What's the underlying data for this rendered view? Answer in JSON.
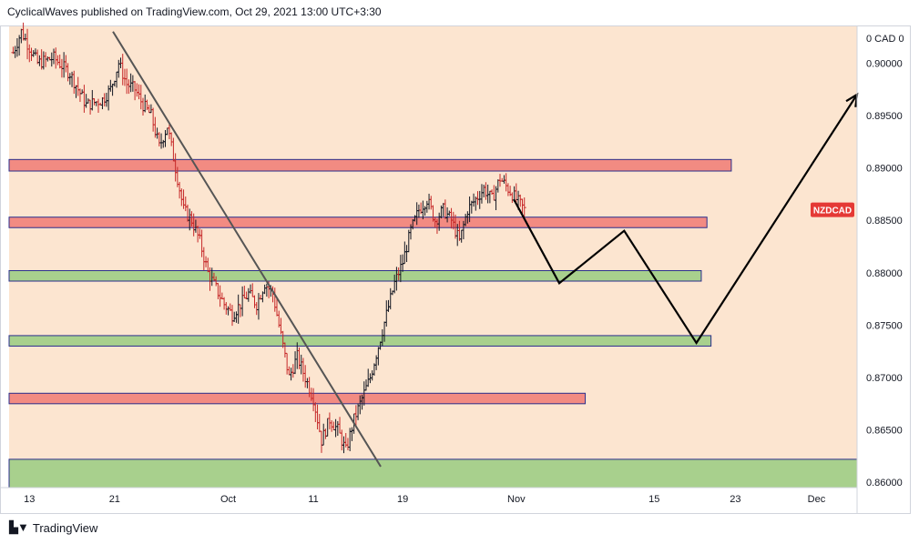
{
  "header": {
    "publish_line": "CyclicalWaves published on TradingView.com, Oct 29, 2021 13:00 UTC+3:30"
  },
  "footer": {
    "logo_icon": "tradingview-logo-icon",
    "brand": "TradingView"
  },
  "colors": {
    "plot_bg": "#fce5d0",
    "bull": "#131722",
    "bear": "#c62828",
    "resistance_zone": "#f28b82",
    "support_zone": "#a8d08d",
    "zone_border": "#2a2e8c",
    "symbol_badge": "#e53935"
  },
  "chart_data": {
    "type": "ohlc",
    "symbol": "NZDCAD",
    "y_axis_currency_label": "0 CAD 0",
    "ylim": [
      0.8595,
      0.9035
    ],
    "xlim": [
      -0.5,
      104
    ],
    "x_tick_labels": [
      {
        "label": "13",
        "x": 2
      },
      {
        "label": "21",
        "x": 12.5
      },
      {
        "label": "Oct",
        "x": 26.5
      },
      {
        "label": "11",
        "x": 37
      },
      {
        "label": "19",
        "x": 48
      },
      {
        "label": "Nov",
        "x": 62
      },
      {
        "label": "15",
        "x": 79
      },
      {
        "label": "23",
        "x": 89
      },
      {
        "label": "Dec",
        "x": 99
      }
    ],
    "y_ticks": [
      0.9,
      0.895,
      0.89,
      0.885,
      0.88,
      0.875,
      0.87,
      0.865,
      0.86
    ],
    "y_tick_labels": [
      "0.90000",
      "0.89500",
      "0.89000",
      "0.88500",
      "0.88000",
      "0.87500",
      "0.87000",
      "0.86500",
      "0.86000"
    ],
    "last_price": 0.886,
    "close_path": [
      [
        0,
        0.901
      ],
      [
        1,
        0.903
      ],
      [
        3,
        0.9
      ],
      [
        5,
        0.9005
      ],
      [
        7,
        0.899
      ],
      [
        9,
        0.896
      ],
      [
        11,
        0.8965
      ],
      [
        12,
        0.8975
      ],
      [
        13,
        0.9
      ],
      [
        14,
        0.898
      ],
      [
        15,
        0.8975
      ],
      [
        16,
        0.896
      ],
      [
        17,
        0.895
      ],
      [
        18,
        0.892
      ],
      [
        19,
        0.894
      ],
      [
        20,
        0.89
      ],
      [
        21,
        0.886
      ],
      [
        22,
        0.885
      ],
      [
        23,
        0.883
      ],
      [
        24,
        0.88
      ],
      [
        25,
        0.8785
      ],
      [
        26,
        0.877
      ],
      [
        27,
        0.876
      ],
      [
        28,
        0.877
      ],
      [
        29,
        0.878
      ],
      [
        30,
        0.877
      ],
      [
        31,
        0.879
      ],
      [
        32,
        0.878
      ],
      [
        33,
        0.874
      ],
      [
        34,
        0.87
      ],
      [
        35,
        0.872
      ],
      [
        36,
        0.87
      ],
      [
        37,
        0.868
      ],
      [
        38,
        0.864
      ],
      [
        39,
        0.866
      ],
      [
        40,
        0.865
      ],
      [
        41,
        0.863
      ],
      [
        42,
        0.866
      ],
      [
        43,
        0.868
      ],
      [
        44,
        0.87
      ],
      [
        45,
        0.873
      ],
      [
        46,
        0.876
      ],
      [
        47,
        0.879
      ],
      [
        48,
        0.881
      ],
      [
        49,
        0.884
      ],
      [
        50,
        0.886
      ],
      [
        51,
        0.887
      ],
      [
        52,
        0.885
      ],
      [
        53,
        0.886
      ],
      [
        54,
        0.885
      ],
      [
        55,
        0.883
      ],
      [
        56,
        0.886
      ],
      [
        57,
        0.887
      ],
      [
        58,
        0.888
      ],
      [
        59,
        0.887
      ],
      [
        60,
        0.889
      ],
      [
        61,
        0.888
      ],
      [
        62,
        0.887
      ],
      [
        63,
        0.886
      ]
    ],
    "zones": [
      {
        "kind": "resistance",
        "y_low": 0.8897,
        "y_high": 0.8908,
        "x_end": 88.5
      },
      {
        "kind": "resistance",
        "y_low": 0.8843,
        "y_high": 0.8853,
        "x_end": 85.5
      },
      {
        "kind": "support",
        "y_low": 0.8792,
        "y_high": 0.8802,
        "x_end": 84.8
      },
      {
        "kind": "support",
        "y_low": 0.873,
        "y_high": 0.874,
        "x_end": 86.0
      },
      {
        "kind": "resistance",
        "y_low": 0.8675,
        "y_high": 0.8685,
        "x_end": 70.5
      },
      {
        "kind": "support",
        "y_low": 0.8595,
        "y_high": 0.8622,
        "x_end": 104
      }
    ],
    "trendline": {
      "from": [
        12.3,
        0.903
      ],
      "to": [
        45.3,
        0.8615
      ]
    },
    "forecast_path": [
      [
        61.7,
        0.887
      ],
      [
        67.3,
        0.879
      ],
      [
        75.3,
        0.884
      ],
      [
        84.2,
        0.8733
      ],
      [
        104,
        0.897
      ]
    ]
  }
}
